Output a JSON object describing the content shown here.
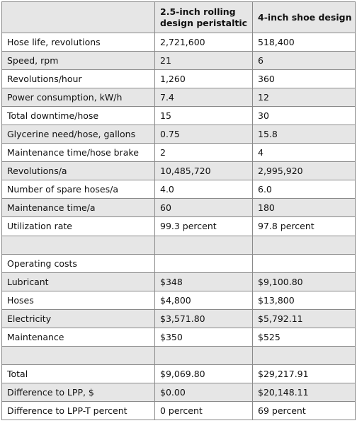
{
  "header": {
    "corner": "",
    "col2_line1": "2.5-inch rolling",
    "col2_line2": "design peristaltic",
    "col3": "4-inch shoe design"
  },
  "rows": [
    {
      "label": "Hose life, revolutions",
      "a": "2,721,600",
      "b": "518,400"
    },
    {
      "label": "Speed, rpm",
      "a": "21",
      "b": "6"
    },
    {
      "label": "Revolutions/hour",
      "a": "1,260",
      "b": "360"
    },
    {
      "label": "Power consumption, kW/h",
      "a": "7.4",
      "b": "12"
    },
    {
      "label": "Total downtime/hose",
      "a": "15",
      "b": "30"
    },
    {
      "label": "Glycerine need/hose, gallons",
      "a": "0.75",
      "b": "15.8"
    },
    {
      "label": "Maintenance time/hose brake",
      "a": "2",
      "b": "4"
    },
    {
      "label": "Revolutions/a",
      "a": "10,485,720",
      "b": "2,995,920"
    },
    {
      "label": "Number of spare hoses/a",
      "a": "4.0",
      "b": "6.0"
    },
    {
      "label": "Maintenance time/a",
      "a": "60",
      "b": "180"
    },
    {
      "label": "Utilization rate",
      "a": "99.3 percent",
      "b": "97.8 percent"
    },
    {
      "label": "",
      "a": "",
      "b": ""
    },
    {
      "label": "Operating costs",
      "a": "",
      "b": ""
    },
    {
      "label": "Lubricant",
      "a": "$348",
      "b": "$9,100.80"
    },
    {
      "label": "Hoses",
      "a": "$4,800",
      "b": "$13,800"
    },
    {
      "label": "Electricity",
      "a": "$3,571.80",
      "b": "$5,792.11"
    },
    {
      "label": "Maintenance",
      "a": "$350",
      "b": "$525"
    },
    {
      "label": "",
      "a": "",
      "b": ""
    },
    {
      "label": "Total",
      "a": "$9,069.80",
      "b": "$29,217.91"
    },
    {
      "label": "Difference to LPP, $",
      "a": "$0.00",
      "b": "$20,148.11"
    },
    {
      "label": "Difference to LPP-T percent",
      "a": "0 percent",
      "b": "69 percent"
    }
  ],
  "colors": {
    "shade": "#e6e6e6",
    "border": "#8a8a8a"
  }
}
